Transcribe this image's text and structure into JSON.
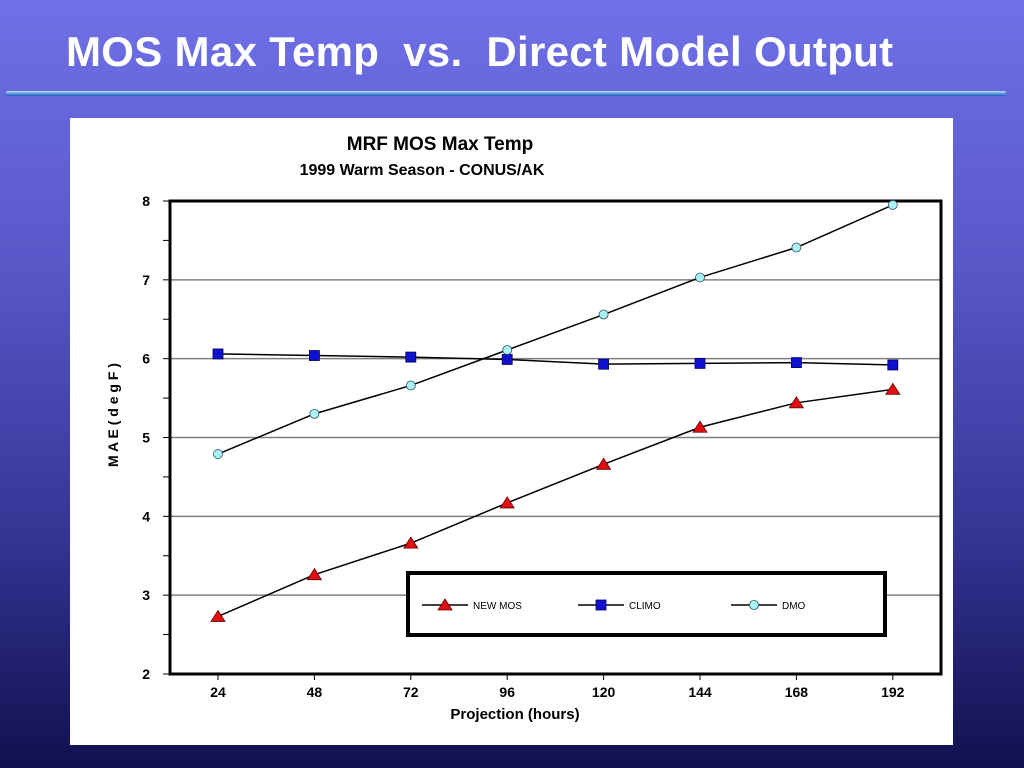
{
  "slide": {
    "title": "MOS Max Temp  vs.  Direct Model Output"
  },
  "colors": {
    "background_top": "#7070e8",
    "background_bottom": "#10104e",
    "new_mos": "#e01010",
    "climo": "#1010d0",
    "dmo": "#a8f4f8",
    "grid": "#808080"
  },
  "chart_data": {
    "type": "line",
    "title": "MRF MOS Max Temp",
    "subtitle": "1999 Warm Season - CONUS/AK",
    "xlabel": "Projection (hours)",
    "ylabel": "M A E   ( d e g   F )",
    "categories": [
      "24",
      "48",
      "72",
      "96",
      "120",
      "144",
      "168",
      "192"
    ],
    "ylim": [
      2,
      8
    ],
    "yticks": [
      "2",
      "3",
      "4",
      "5",
      "6",
      "7",
      "8"
    ],
    "grid": true,
    "legend_position": "bottom-right",
    "series": [
      {
        "name": "NEW MOS",
        "marker": "triangle",
        "color": "#e01010",
        "values": [
          2.73,
          3.26,
          3.66,
          4.17,
          4.66,
          5.13,
          5.44,
          5.61
        ]
      },
      {
        "name": "CLIMO",
        "marker": "square",
        "color": "#1010d0",
        "values": [
          6.06,
          6.04,
          6.02,
          5.99,
          5.93,
          5.94,
          5.95,
          5.92
        ]
      },
      {
        "name": "DMO",
        "marker": "circle",
        "color": "#a8f4f8",
        "values": [
          4.79,
          5.3,
          5.66,
          6.11,
          6.56,
          7.03,
          7.41,
          7.95
        ]
      }
    ]
  }
}
